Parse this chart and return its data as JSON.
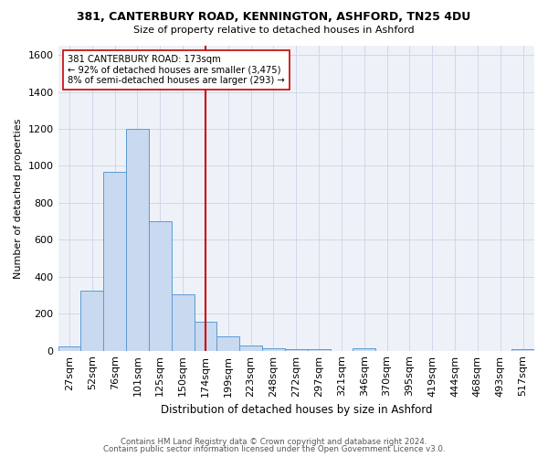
{
  "title": "381, CANTERBURY ROAD, KENNINGTON, ASHFORD, TN25 4DU",
  "subtitle": "Size of property relative to detached houses in Ashford",
  "xlabel": "Distribution of detached houses by size in Ashford",
  "ylabel": "Number of detached properties",
  "bar_labels": [
    "27sqm",
    "52sqm",
    "76sqm",
    "101sqm",
    "125sqm",
    "150sqm",
    "174sqm",
    "199sqm",
    "223sqm",
    "248sqm",
    "272sqm",
    "297sqm",
    "321sqm",
    "346sqm",
    "370sqm",
    "395sqm",
    "419sqm",
    "444sqm",
    "468sqm",
    "493sqm",
    "517sqm"
  ],
  "bar_heights": [
    25,
    325,
    970,
    1200,
    700,
    305,
    155,
    80,
    30,
    15,
    10,
    10,
    0,
    15,
    0,
    0,
    0,
    0,
    0,
    0,
    10
  ],
  "bar_color": "#c8d9f0",
  "bar_edge_color": "#5b9bd5",
  "grid_color": "#d0d8e8",
  "background_color": "#eef2f8",
  "vline_x_index": 6,
  "vline_color": "#cc0000",
  "annotation_line1": "381 CANTERBURY ROAD: 173sqm",
  "annotation_line2": "← 92% of detached houses are smaller (3,475)",
  "annotation_line3": "8% of semi-detached houses are larger (293) →",
  "annotation_box_color": "white",
  "annotation_box_edge_color": "#cc0000",
  "ylim": [
    0,
    1650
  ],
  "yticks": [
    0,
    200,
    400,
    600,
    800,
    1000,
    1200,
    1400,
    1600
  ],
  "footer_line1": "Contains HM Land Registry data © Crown copyright and database right 2024.",
  "footer_line2": "Contains public sector information licensed under the Open Government Licence v3.0."
}
